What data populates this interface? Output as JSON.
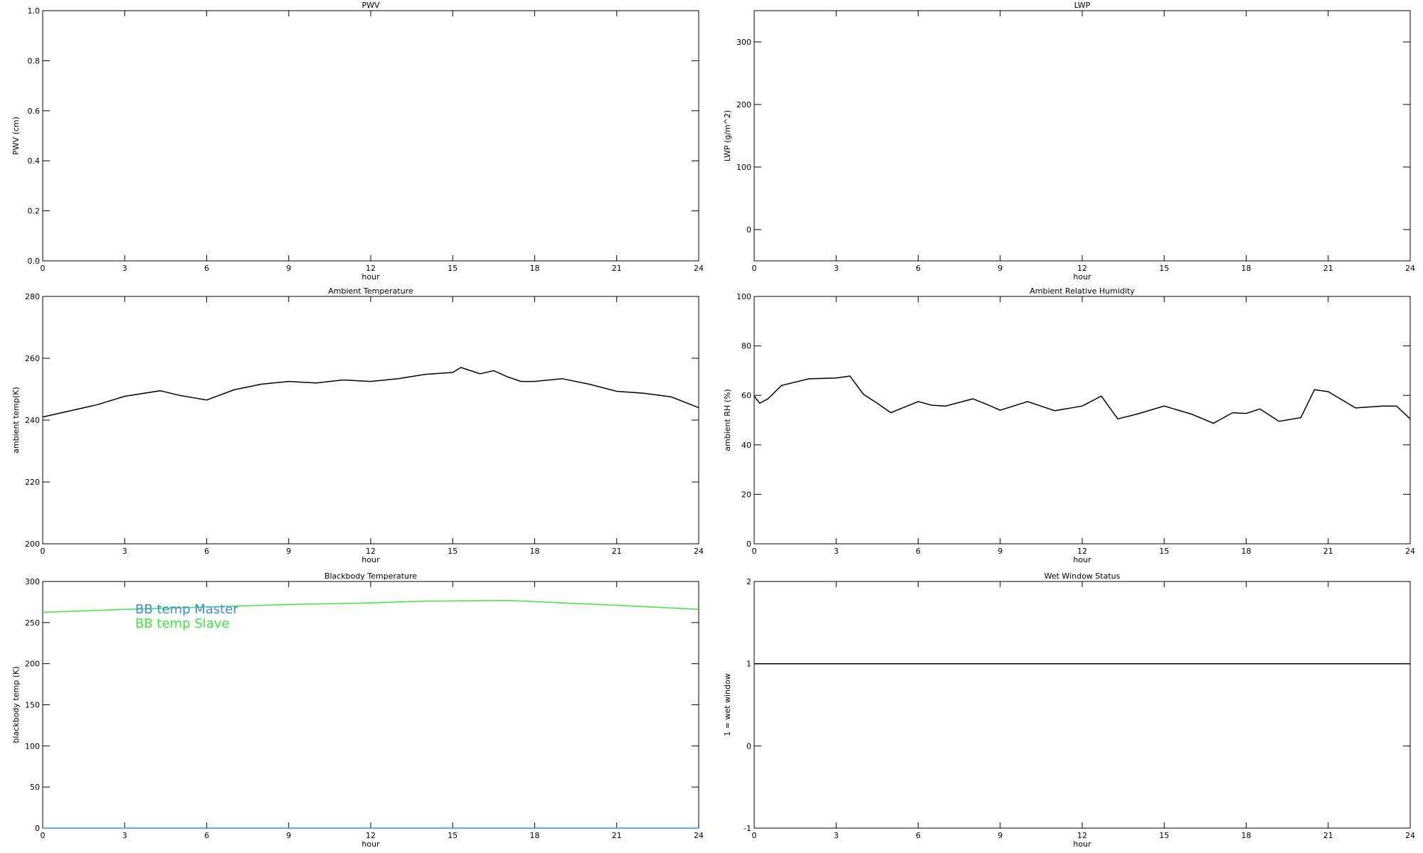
{
  "chart_data": [
    {
      "type": "line",
      "title": "PWV",
      "xlabel": "hour",
      "ylabel": "PWV (cm)",
      "x": [],
      "series": [],
      "xlim": [
        0,
        24
      ],
      "xticks": [
        0,
        3,
        6,
        9,
        12,
        15,
        18,
        21,
        24
      ],
      "ylim": [
        0,
        1
      ],
      "yticks": [
        {
          "value": 0,
          "label": "0.0"
        },
        0.2,
        0.4,
        0.6,
        0.8,
        {
          "value": 1,
          "label": "1.0"
        }
      ]
    },
    {
      "type": "line",
      "title": "LWP",
      "xlabel": "hour",
      "ylabel": "LWP (g/m^2)",
      "x": [],
      "series": [],
      "xlim": [
        0,
        24
      ],
      "xticks": [
        0,
        3,
        6,
        9,
        12,
        15,
        18,
        21,
        24
      ],
      "ylim": [
        -50,
        350
      ],
      "yticks": [
        0,
        100,
        200,
        300
      ]
    },
    {
      "type": "line",
      "title": "Ambient Temperature",
      "xlabel": "hour",
      "ylabel": "ambient temp(K)",
      "x": [
        0,
        1,
        2,
        3,
        4.3,
        5,
        6,
        7,
        8,
        9,
        10,
        11,
        12,
        13,
        14,
        15,
        15.3,
        16,
        16.5,
        17,
        17.5,
        18,
        19,
        20,
        21,
        22,
        23,
        24
      ],
      "series": [
        {
          "name": "ambient temp",
          "color": "#000000",
          "values": [
            241,
            243,
            245,
            247.7,
            249.5,
            248,
            246.5,
            249.8,
            251.6,
            252.5,
            252,
            253,
            252.5,
            253.4,
            254.8,
            255.4,
            257,
            255,
            256,
            254,
            252.5,
            252.5,
            253.4,
            251.6,
            249.3,
            248.7,
            247.5,
            244
          ]
        }
      ],
      "xlim": [
        0,
        24
      ],
      "xticks": [
        0,
        3,
        6,
        9,
        12,
        15,
        18,
        21,
        24
      ],
      "ylim": [
        200,
        280
      ],
      "yticks": [
        200,
        220,
        240,
        260,
        280
      ]
    },
    {
      "type": "line",
      "title": "Ambient Relative Humidity",
      "xlabel": "hour",
      "ylabel": "ambient RH (%)",
      "x": [
        0,
        0.2,
        0.5,
        1,
        2,
        3,
        3.5,
        4,
        4.5,
        5,
        6,
        6.5,
        7,
        8,
        8.5,
        9,
        10,
        11,
        12,
        12.7,
        13.3,
        14,
        15,
        16,
        16.8,
        17.5,
        18,
        18.5,
        19.2,
        20,
        20.5,
        21,
        22,
        23,
        23.5,
        24
      ],
      "series": [
        {
          "name": "ambient RH",
          "color": "#000000",
          "values": [
            59.7,
            56.8,
            58.6,
            64,
            66.7,
            67,
            67.8,
            60.4,
            56.8,
            53,
            57.5,
            56,
            55.7,
            58.6,
            56.4,
            54,
            57.5,
            53.8,
            55.7,
            59.7,
            50.5,
            52.4,
            55.7,
            52.4,
            48.7,
            53,
            52.7,
            54.5,
            49.5,
            51,
            62.3,
            61.5,
            54.9,
            55.7,
            55.7,
            50.5
          ]
        }
      ],
      "xlim": [
        0,
        24
      ],
      "xticks": [
        0,
        3,
        6,
        9,
        12,
        15,
        18,
        21,
        24
      ],
      "ylim": [
        0,
        100
      ],
      "yticks": [
        0,
        20,
        40,
        60,
        80,
        100
      ]
    },
    {
      "type": "line",
      "title": "Blackbody Temperature",
      "xlabel": "hour",
      "ylabel": "blackbody temp (K)",
      "x": [
        0,
        3,
        6,
        9,
        12,
        14,
        17,
        19,
        21,
        24
      ],
      "series": [
        {
          "name": "BB temp Master",
          "color": "#3c8ce6",
          "values": [
            0,
            0,
            0,
            0,
            0,
            0,
            0,
            0,
            0,
            0
          ]
        },
        {
          "name": "BB temp Slave",
          "color": "#3ce63c",
          "values": [
            262.5,
            266,
            269,
            272,
            274,
            276,
            277,
            274,
            271,
            266
          ]
        }
      ],
      "xlim": [
        0,
        24
      ],
      "xticks": [
        0,
        3,
        6,
        9,
        12,
        15,
        18,
        21,
        24
      ],
      "ylim": [
        0,
        300
      ],
      "yticks": [
        0,
        50,
        100,
        150,
        200,
        250,
        300
      ]
    },
    {
      "type": "line",
      "title": "Wet Window Status",
      "xlabel": "hour",
      "ylabel": "1 = wet window",
      "x": [
        0,
        24
      ],
      "series": [
        {
          "name": "wet window",
          "color": "#000000",
          "values": [
            1,
            1
          ]
        }
      ],
      "xlim": [
        0,
        24
      ],
      "xticks": [
        0,
        3,
        6,
        9,
        12,
        15,
        18,
        21,
        24
      ],
      "ylim": [
        -1,
        2
      ],
      "yticks": [
        -1,
        0,
        1,
        2
      ]
    }
  ]
}
